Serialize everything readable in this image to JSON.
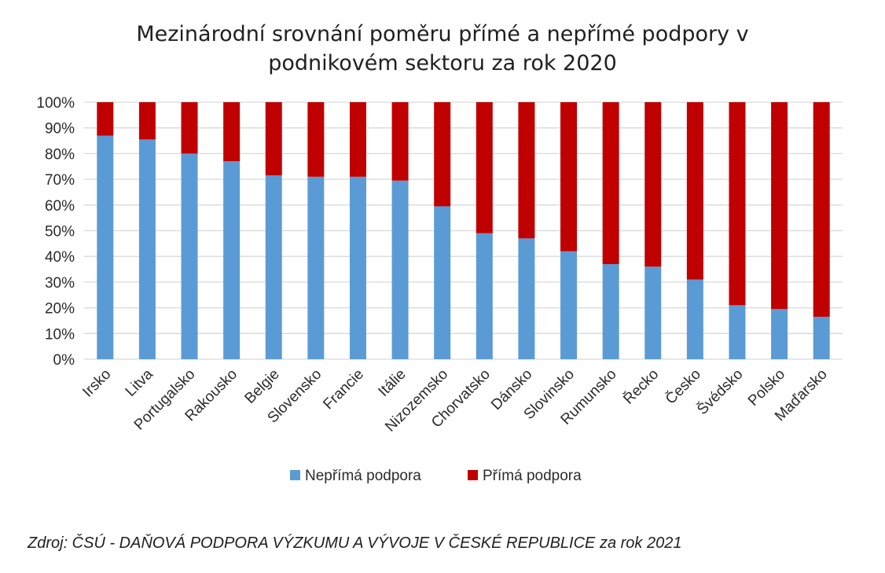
{
  "chart_data": {
    "type": "bar",
    "stacked": true,
    "percent_stacked": true,
    "title": [
      "Mezinárodní srovnání poměru přímé a nepřímé podpory v",
      "podnikovém sektoru za rok 2020"
    ],
    "categories": [
      "Irsko",
      "Litva",
      "Portugalsko",
      "Rakousko",
      "Belgie",
      "Slovensko",
      "Francie",
      "Itálie",
      "Nizozemsko",
      "Chorvatsko",
      "Dánsko",
      "Slovinsko",
      "Rumunsko",
      "Řecko",
      "Česko",
      "Švédsko",
      "Polsko",
      "Maďarsko"
    ],
    "series": [
      {
        "name": "Nepřímá podpora",
        "color": "#5B9BD5",
        "values": [
          87,
          85.5,
          80,
          77,
          71.5,
          71,
          71,
          69.5,
          59.5,
          49,
          47,
          42,
          37,
          36,
          31,
          21,
          19.5,
          16.5
        ]
      },
      {
        "name": "Přímá podpora",
        "color": "#C00000",
        "values": [
          13,
          14.5,
          20,
          23,
          28.5,
          29,
          29,
          30.5,
          40.5,
          51,
          53,
          58,
          63,
          64,
          69,
          79,
          80.5,
          83.5
        ]
      }
    ],
    "y_ticks": [
      "0%",
      "10%",
      "20%",
      "30%",
      "40%",
      "50%",
      "60%",
      "70%",
      "80%",
      "90%",
      "100%"
    ],
    "ylim": [
      0,
      100
    ],
    "grid": true,
    "legend_position": "bottom"
  },
  "source_note": "Zdroj: ČSÚ - DAŇOVÁ PODPORA VÝZKUMU A VÝVOJE V ČESKÉ REPUBLICE za rok 2021"
}
